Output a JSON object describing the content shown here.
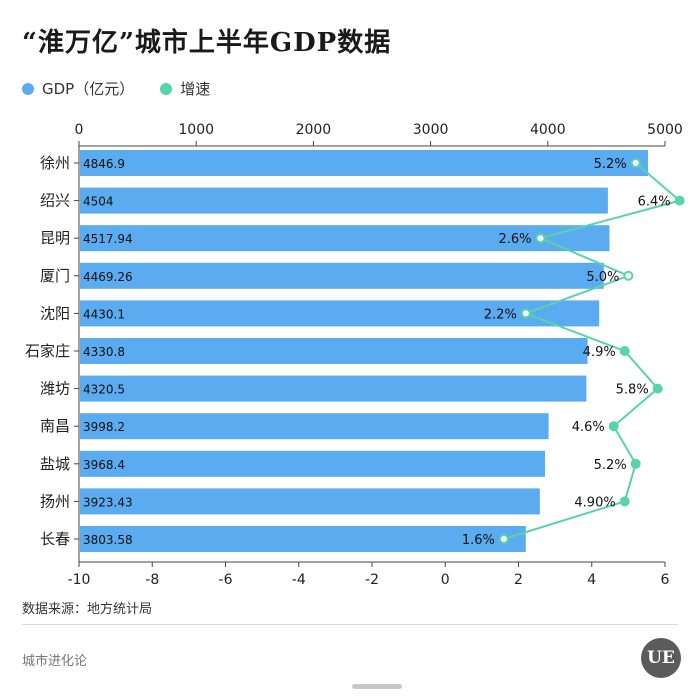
{
  "title": "“淮万亿”城市上半年GDP数据",
  "legend": {
    "gdp_label": "GDP（亿元）",
    "growth_label": "增速"
  },
  "source": "数据来源：地方统计局",
  "brand": "城市进化论",
  "logo_text": "UE",
  "colors": {
    "bar": "#5aabef",
    "line": "#57d4a8",
    "axis": "#444444"
  },
  "chart_data": {
    "type": "bar",
    "orientation": "horizontal",
    "categories": [
      "徐州",
      "绍兴",
      "昆明",
      "厦门",
      "沈阳",
      "石家庄",
      "潍坊",
      "南昌",
      "盐城",
      "扬州",
      "长春"
    ],
    "series": [
      {
        "name": "GDP（亿元）",
        "type": "bar",
        "axis": "top",
        "values": [
          4846.9,
          4504,
          4517.94,
          4469.26,
          4430.1,
          4330.8,
          4320.5,
          3998.2,
          3968.4,
          3923.43,
          3803.58
        ],
        "labels": [
          "4846.9",
          "4504",
          "4517.94",
          "4469.26",
          "4430.1",
          "4330.8",
          "4320.5",
          "3998.2",
          "3968.4",
          "3923.43",
          "3803.58"
        ]
      },
      {
        "name": "增速",
        "type": "line",
        "axis": "bottom",
        "values": [
          5.2,
          6.4,
          2.6,
          5.0,
          2.2,
          4.9,
          5.8,
          4.6,
          5.2,
          4.9,
          1.6
        ],
        "labels": [
          "5.2%",
          "6.4%",
          "2.6%",
          "5.0%",
          "2.2%",
          "4.9%",
          "5.8%",
          "4.6%",
          "5.2%",
          "4.90%",
          "1.6%"
        ]
      }
    ],
    "top_axis": {
      "range": [
        0,
        5000
      ],
      "ticks": [
        "0",
        "1000",
        "2000",
        "3000",
        "4000",
        "5000"
      ]
    },
    "bottom_axis": {
      "range": [
        -10,
        6
      ],
      "ticks": [
        "-10",
        "-8",
        "-6",
        "-4",
        "-2",
        "0",
        "2",
        "4",
        "6"
      ]
    },
    "legend_position": "top-left",
    "grid": false
  }
}
